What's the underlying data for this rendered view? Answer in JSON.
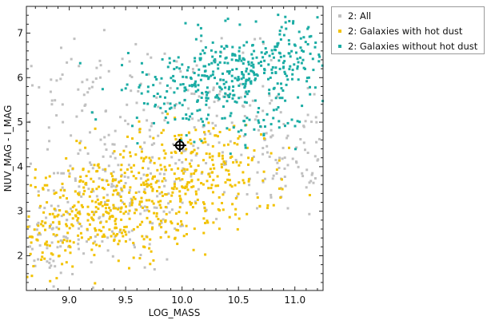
{
  "chart_data": {
    "type": "scatter",
    "xlabel": "LOG_MASS",
    "ylabel": "NUV_MAG - I_MAG",
    "xlim": [
      8.62,
      11.25
    ],
    "ylim": [
      1.22,
      7.6
    ],
    "xticks": [
      "9.0",
      "9.5",
      "10.0",
      "10.5",
      "11.0"
    ],
    "yticks": [
      "2",
      "3",
      "4",
      "5",
      "6",
      "7"
    ],
    "legend_position": "outside-top-right",
    "marker": {
      "x": 9.98,
      "y": 4.48,
      "shape": "crosshair-circle"
    },
    "series": [
      {
        "name": "2: All",
        "color": "#c0c0c0",
        "clusters": [
          {
            "cx": 9.35,
            "cy": 3.25,
            "sx": 0.45,
            "sy": 0.75,
            "n": 180
          },
          {
            "cx": 10.2,
            "cy": 4.9,
            "sx": 0.55,
            "sy": 0.85,
            "n": 160
          },
          {
            "cx": 10.9,
            "cy": 4.1,
            "sx": 0.25,
            "sy": 0.7,
            "n": 70
          },
          {
            "cx": 9.2,
            "cy": 5.6,
            "sx": 0.35,
            "sy": 0.6,
            "n": 60
          },
          {
            "cx": 8.85,
            "cy": 2.4,
            "sx": 0.18,
            "sy": 0.45,
            "n": 50
          }
        ]
      },
      {
        "name": "2: Galaxies with hot dust",
        "color": "#f2c200",
        "clusters": [
          {
            "cx": 9.3,
            "cy": 2.95,
            "sx": 0.38,
            "sy": 0.55,
            "n": 260
          },
          {
            "cx": 9.9,
            "cy": 3.7,
            "sx": 0.4,
            "sy": 0.6,
            "n": 230
          },
          {
            "cx": 10.35,
            "cy": 3.95,
            "sx": 0.3,
            "sy": 0.55,
            "n": 90
          },
          {
            "cx": 8.85,
            "cy": 2.5,
            "sx": 0.2,
            "sy": 0.45,
            "n": 70
          }
        ]
      },
      {
        "name": "2: Galaxies without hot dust",
        "color": "#1aaca4",
        "clusters": [
          {
            "cx": 10.55,
            "cy": 6.1,
            "sx": 0.35,
            "sy": 0.45,
            "n": 240
          },
          {
            "cx": 10.0,
            "cy": 5.75,
            "sx": 0.3,
            "sy": 0.45,
            "n": 120
          },
          {
            "cx": 10.9,
            "cy": 6.55,
            "sx": 0.15,
            "sy": 0.4,
            "n": 60
          },
          {
            "cx": 10.6,
            "cy": 5.05,
            "sx": 0.3,
            "sy": 0.35,
            "n": 50
          }
        ]
      }
    ]
  }
}
